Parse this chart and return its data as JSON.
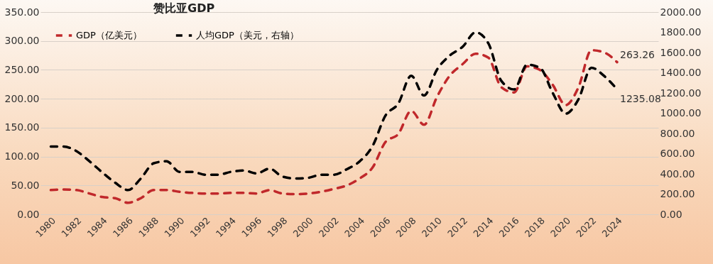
{
  "chart_data": {
    "type": "line",
    "title": "赞比亚GDP",
    "categories": [
      "1980",
      null,
      "1982",
      null,
      "1984",
      null,
      "1986",
      null,
      "1988",
      null,
      "1990",
      null,
      "1992",
      null,
      "1994",
      null,
      "1996",
      null,
      "1998",
      null,
      "2000",
      null,
      "2002",
      null,
      "2004",
      null,
      "2006",
      null,
      "2008",
      null,
      "2010",
      null,
      "2012",
      null,
      "2014",
      null,
      "2016",
      null,
      "2018",
      null,
      "2020",
      null,
      "2022",
      null,
      "2024"
    ],
    "series": [
      {
        "name": "GDP（亿美元）",
        "color": "#c0282b",
        "values": [
          42,
          43,
          42,
          36,
          30,
          28,
          20,
          28,
          42,
          42,
          39,
          37,
          36,
          36,
          37,
          37,
          36,
          42,
          36,
          35,
          36,
          39,
          44,
          50,
          62,
          81,
          125,
          139,
          179,
          155,
          203,
          240,
          260,
          278,
          271,
          220,
          211,
          256,
          250,
          224,
          189,
          220,
          284,
          280,
          263.26
        ]
      },
      {
        "name": "人均GDP（美元，右轴）",
        "color": "#000000",
        "axis": "y2",
        "values": [
          670,
          670,
          625,
          525,
          415,
          313,
          240,
          355,
          505,
          525,
          420,
          420,
          392,
          392,
          420,
          434,
          404,
          452,
          373,
          355,
          361,
          392,
          392,
          446,
          524,
          675,
          976,
          1096,
          1370,
          1175,
          1430,
          1570,
          1657,
          1800,
          1690,
          1320,
          1235,
          1480,
          1450,
          1200,
          995,
          1138,
          1450,
          1367,
          1235.08
        ]
      }
    ],
    "ylim": [
      0,
      350
    ],
    "yticks": [
      {
        "value": 0,
        "label": "0.00"
      },
      {
        "value": 50,
        "label": "50.00"
      },
      {
        "value": 100,
        "label": "100.00"
      },
      {
        "value": 150,
        "label": "150.00"
      },
      {
        "value": 200,
        "label": "200.00"
      },
      {
        "value": 250,
        "label": "250.00"
      },
      {
        "value": 300,
        "label": "300.00"
      },
      {
        "value": 350,
        "label": "350.00"
      }
    ],
    "y2lim": [
      0,
      2000
    ],
    "y2ticks": [
      {
        "value": 0,
        "label": "0.00"
      },
      {
        "value": 200,
        "label": "200.00"
      },
      {
        "value": 400,
        "label": "400.00"
      },
      {
        "value": 600,
        "label": "600.00"
      },
      {
        "value": 800,
        "label": "800.00"
      },
      {
        "value": 1000,
        "label": "1000.00"
      },
      {
        "value": 1200,
        "label": "1200.00"
      },
      {
        "value": 1400,
        "label": "1400.00"
      },
      {
        "value": 1600,
        "label": "1600.00"
      },
      {
        "value": 1800,
        "label": "1800.00"
      },
      {
        "value": 2000,
        "label": "2000.00"
      }
    ],
    "annotations": [
      "263.26",
      "1235.08"
    ],
    "grid": "y",
    "legend": "top left",
    "line_style": "dashed",
    "marker": "none"
  }
}
